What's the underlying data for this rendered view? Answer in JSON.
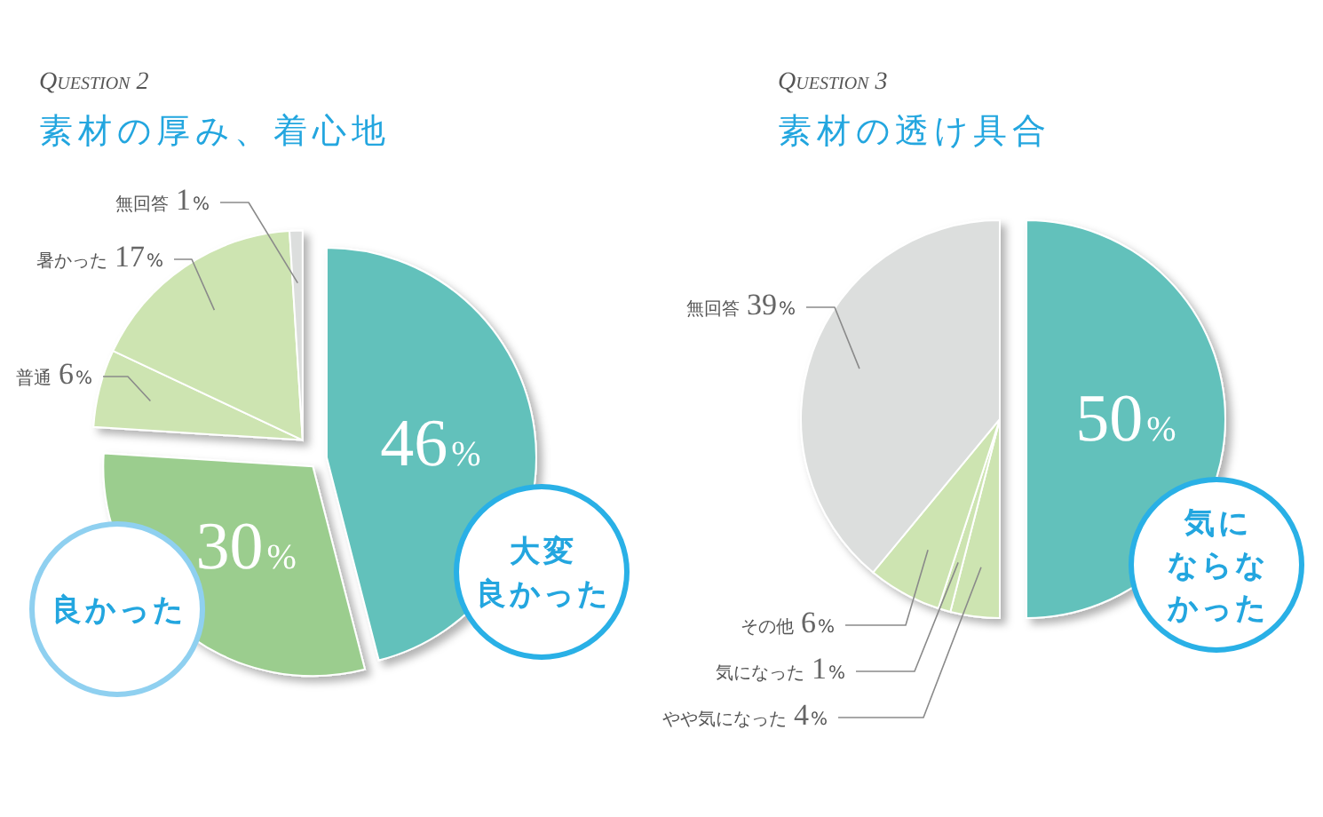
{
  "chart_data": [
    {
      "type": "pie",
      "subtitle": "Question 2",
      "title": "素材の厚み、着心地",
      "categories": [
        "大変良かった",
        "良かった",
        "普通",
        "暑かった",
        "無回答"
      ],
      "values": [
        46,
        30,
        6,
        17,
        1
      ],
      "value_labels": [
        "46%",
        "30%",
        "6%",
        "17%",
        "1%"
      ],
      "colors": [
        "#62c1bb",
        "#9bcd8e",
        "#cde4b1",
        "#cde4b1",
        "#dcdedd"
      ]
    },
    {
      "type": "pie",
      "subtitle": "Question 3",
      "title": "素材の透け具合",
      "categories": [
        "気にならなかった",
        "やや気になった",
        "気になった",
        "その他",
        "無回答"
      ],
      "values": [
        50,
        4,
        1,
        6,
        39
      ],
      "value_labels": [
        "50%",
        "4%",
        "1%",
        "6%",
        "39%"
      ],
      "colors": [
        "#62c1bb",
        "#cde4b1",
        "#cde4b1",
        "#cde4b1",
        "#dcdedd"
      ]
    }
  ]
}
